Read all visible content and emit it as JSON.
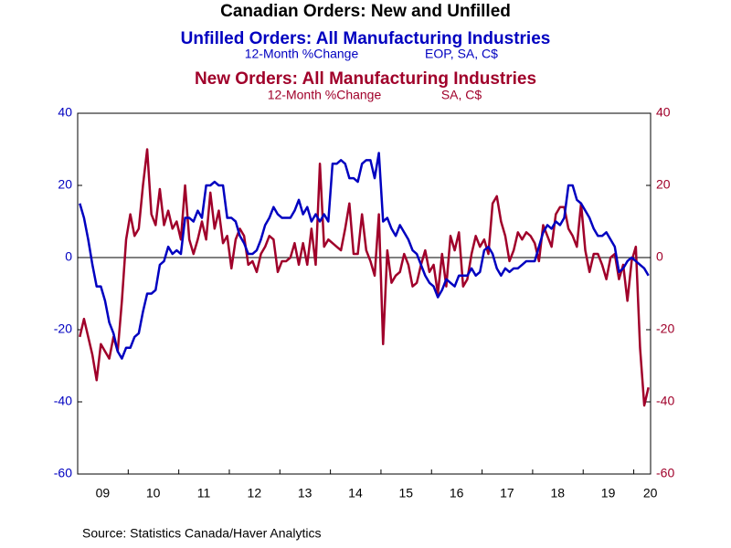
{
  "chart_data": {
    "type": "line",
    "title": "Canadian Orders: New and Unfilled",
    "source": "Source:  Statistics Canada/Haver Analytics",
    "categories": [
      null,
      null,
      null,
      null,
      null,
      "09",
      null,
      null,
      null,
      null,
      null,
      null,
      null,
      null,
      null,
      null,
      null,
      "10",
      null,
      null,
      null,
      null,
      null,
      null,
      null,
      null,
      null,
      null,
      null,
      "11",
      null,
      null,
      null,
      null,
      null,
      null,
      null,
      null,
      null,
      null,
      null,
      "12",
      null,
      null,
      null,
      null,
      null,
      null,
      null,
      null,
      null,
      null,
      null,
      "13",
      null,
      null,
      null,
      null,
      null,
      null,
      null,
      null,
      null,
      null,
      null,
      "14",
      null,
      null,
      null,
      null,
      null,
      null,
      null,
      null,
      null,
      null,
      null,
      "15",
      null,
      null,
      null,
      null,
      null,
      null,
      null,
      null,
      null,
      null,
      null,
      "16",
      null,
      null,
      null,
      null,
      null,
      null,
      null,
      null,
      null,
      null,
      null,
      "17",
      null,
      null,
      null,
      null,
      null,
      null,
      null,
      null,
      null,
      null,
      null,
      "18",
      null,
      null,
      null,
      null,
      null,
      null,
      null,
      null,
      null,
      null,
      null,
      "19",
      null,
      null,
      null,
      null,
      null,
      null,
      null,
      null,
      null,
      "20"
    ],
    "series": [
      {
        "name": "Unfilled Orders: All Manufacturing Industries",
        "units": "12-Month %Change",
        "notes": "EOP, SA, C$",
        "color": "#0000c0",
        "axis": "y",
        "values": [
          15,
          11,
          5,
          -2,
          -8,
          -8,
          -12,
          -18,
          -21,
          -26,
          -28,
          -25,
          -25,
          -22,
          -21,
          -15,
          -10,
          -10,
          -9,
          -2,
          -1,
          3,
          1,
          2,
          1,
          11,
          11,
          10,
          13,
          11,
          20,
          20,
          21,
          20,
          20,
          11,
          11,
          10,
          6,
          4,
          1,
          1,
          2,
          5,
          9,
          11,
          14,
          12,
          11,
          11,
          11,
          13,
          16,
          12,
          14,
          10,
          12,
          10,
          12,
          10,
          26,
          26,
          27,
          26,
          22,
          22,
          21,
          26,
          27,
          27,
          22,
          29,
          10,
          11,
          8,
          6,
          9,
          7,
          5,
          2,
          1,
          -2,
          -5,
          -7,
          -8,
          -11,
          -9,
          -6,
          -7,
          -8,
          -5,
          -5,
          -5,
          -3,
          -5,
          -4,
          2,
          3,
          1,
          -3,
          -5,
          -3,
          -4,
          -3,
          -3,
          -2,
          -1,
          -1,
          -1,
          3,
          7,
          9,
          8,
          10,
          9,
          11,
          20,
          20,
          16,
          15,
          13,
          11,
          8,
          6,
          6,
          7,
          5,
          3,
          -4,
          -3,
          -1,
          0,
          -1,
          -2,
          -3,
          -5
        ]
      },
      {
        "name": "New Orders: All Manufacturing Industries",
        "units": "12-Month %Change",
        "notes": "SA, C$",
        "color": "#a0002a",
        "axis": "y2",
        "values": [
          -22,
          -17,
          -22,
          -27,
          -34,
          -24,
          -26,
          -28,
          -22,
          -26,
          -12,
          5,
          12,
          6,
          8,
          20,
          30,
          12,
          9,
          19,
          9,
          13,
          8,
          10,
          5,
          20,
          5,
          1,
          5,
          10,
          5,
          18,
          8,
          13,
          4,
          6,
          -3,
          5,
          8,
          6,
          -2,
          -1,
          -4,
          1,
          3,
          6,
          5,
          -4,
          -1,
          -1,
          0,
          4,
          -2,
          4,
          -2,
          8,
          -2,
          26,
          3,
          5,
          4,
          3,
          2,
          8,
          15,
          1,
          1,
          12,
          2,
          -1,
          -5,
          12,
          -24,
          2,
          -7,
          -5,
          -4,
          1,
          -2,
          -8,
          -7,
          -2,
          2,
          -4,
          -2,
          -10,
          1,
          -8,
          6,
          2,
          7,
          -8,
          -6,
          1,
          6,
          3,
          5,
          1,
          15,
          17,
          10,
          6,
          -1,
          2,
          7,
          5,
          7,
          6,
          4,
          -1,
          9,
          6,
          3,
          12,
          14,
          14,
          8,
          6,
          3,
          15,
          2,
          -4,
          1,
          1,
          -2,
          -6,
          0,
          1,
          -6,
          -2,
          -12,
          -1,
          3,
          -25,
          -41,
          -36
        ]
      }
    ],
    "ylim": [
      -60,
      40
    ],
    "yticks": [
      -60,
      -40,
      -20,
      0,
      20,
      40
    ],
    "y2lim": [
      -60,
      40
    ],
    "y2ticks": [
      -60,
      -40,
      -20,
      0,
      20,
      40
    ]
  }
}
